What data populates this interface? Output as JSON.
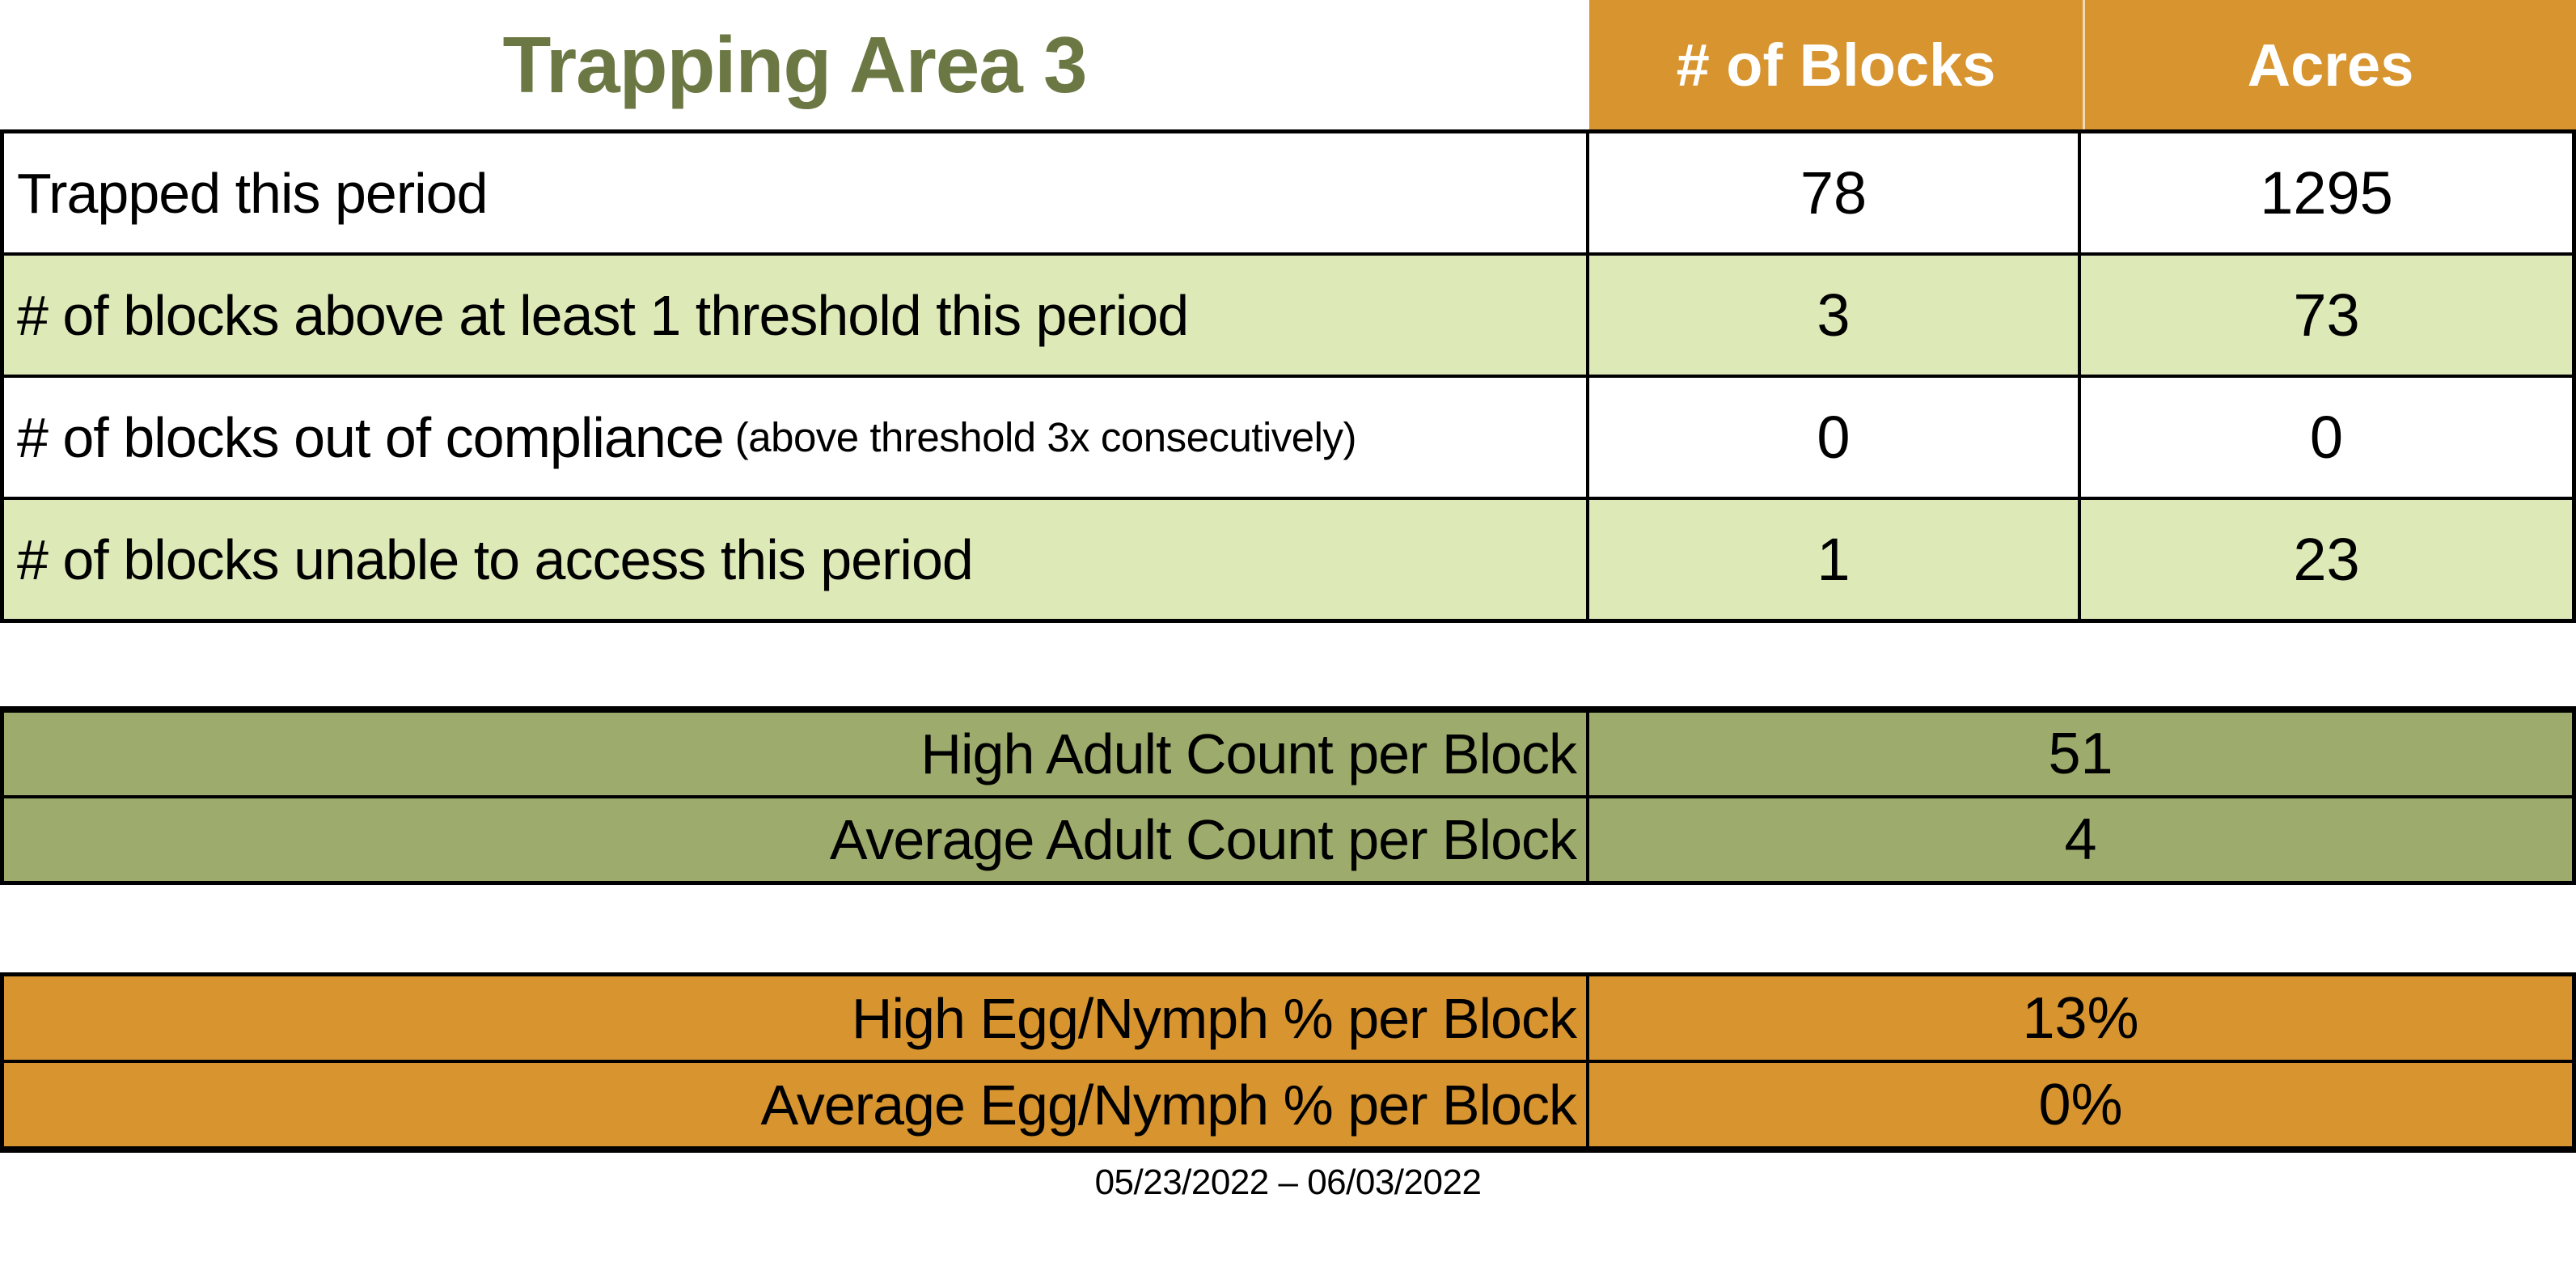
{
  "title": "Trapping Area 3",
  "colors": {
    "header_orange": "#D7942F",
    "row_light_green": "#DEE9B8",
    "olive_green": "#9DAB6C",
    "title_green": "#6B7843",
    "header_text": "#FFFFFF",
    "border": "#000000"
  },
  "table1": {
    "columns": [
      "# of Blocks",
      "Acres"
    ],
    "rows": [
      {
        "label": "Trapped this period",
        "note": "",
        "blocks": "78",
        "acres": "1295"
      },
      {
        "label": "# of blocks above at least 1 threshold this period",
        "note": "",
        "blocks": "3",
        "acres": "73"
      },
      {
        "label": "# of blocks out of compliance",
        "note": "(above threshold 3x consecutively)",
        "blocks": "0",
        "acres": "0"
      },
      {
        "label": "# of blocks unable to access this period",
        "note": "",
        "blocks": "1",
        "acres": "23"
      }
    ]
  },
  "adult_table": {
    "rows": [
      {
        "label": "High Adult Count per Block",
        "value": "51"
      },
      {
        "label": "Average Adult Count per Block",
        "value": "4"
      }
    ]
  },
  "egg_table": {
    "rows": [
      {
        "label": "High Egg/Nymph % per Block",
        "value": "13%"
      },
      {
        "label": "Average Egg/Nymph % per Block",
        "value": "0%"
      }
    ]
  },
  "footer": {
    "date_range": "05/23/2022 – 06/03/2022"
  }
}
